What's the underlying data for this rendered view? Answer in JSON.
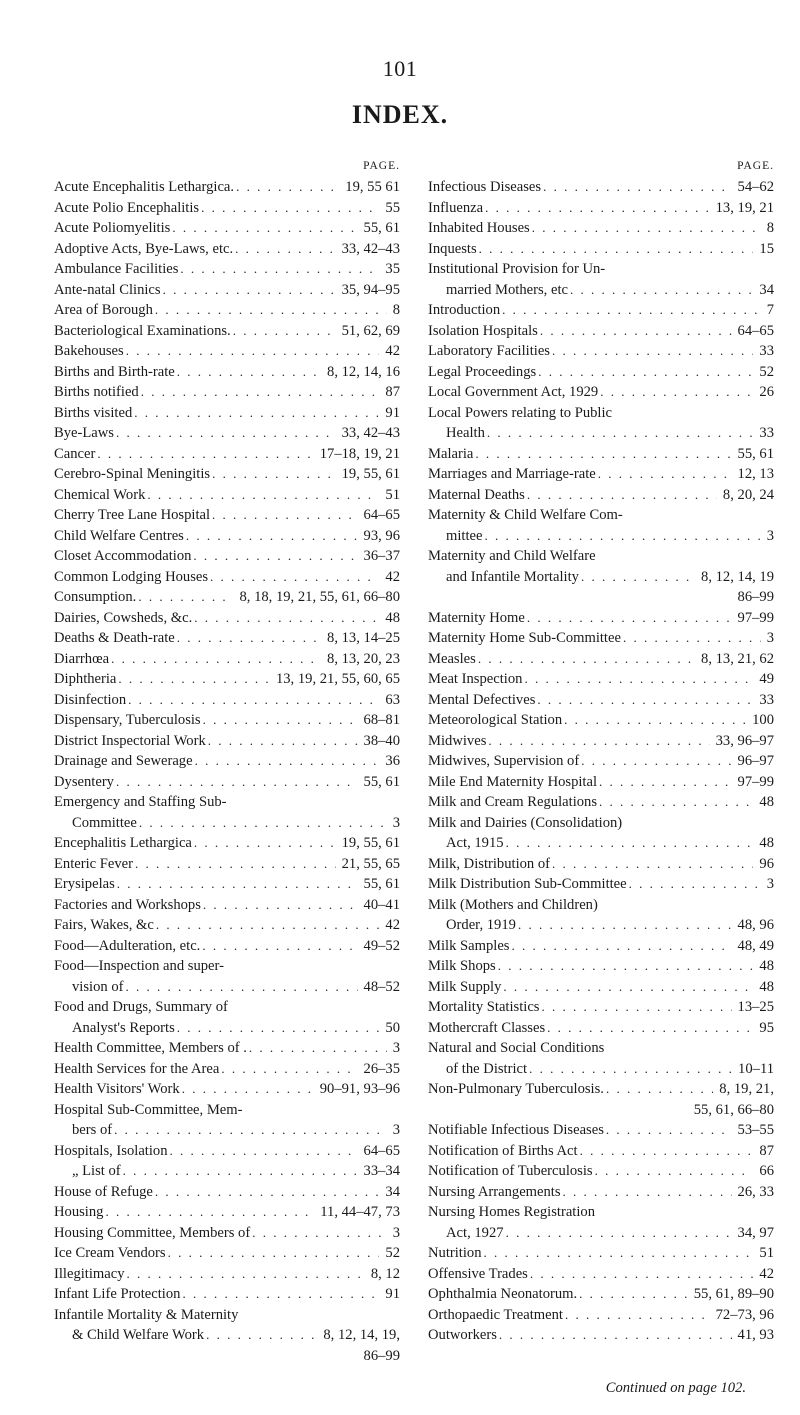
{
  "page_number": "101",
  "title": "INDEX.",
  "col_head": "PAGE.",
  "continued_text": "Continued on page 102.",
  "left": [
    {
      "l": "Acute Encephalitis Lethargica.",
      "p": "19, 55  61"
    },
    {
      "l": "Acute Polio Encephalitis",
      "p": "55"
    },
    {
      "l": "Acute Poliomyelitis",
      "p": "55,  61"
    },
    {
      "l": "Adoptive Acts, Bye-Laws, etc.",
      "p": "33, 42–43"
    },
    {
      "l": "Ambulance Facilities",
      "p": "35"
    },
    {
      "l": "Ante-natal Clinics",
      "p": "35,  94–95"
    },
    {
      "l": "Area of Borough",
      "p": "8"
    },
    {
      "l": "Bacteriological Examinations.",
      "p": "51, 62, 69"
    },
    {
      "l": "Bakehouses",
      "p": "42"
    },
    {
      "l": "Births and Birth-rate",
      "p": "8, 12, 14, 16"
    },
    {
      "l": "Births notified",
      "p": "87"
    },
    {
      "l": "Births visited",
      "p": "91"
    },
    {
      "l": "Bye-Laws",
      "p": "33, 42–43"
    },
    {
      "l": "Cancer",
      "p": "17–18, 19, 21"
    },
    {
      "l": "Cerebro-Spinal Meningitis",
      "p": "19, 55, 61"
    },
    {
      "l": "Chemical Work",
      "p": "51"
    },
    {
      "l": "Cherry Tree Lane Hospital",
      "p": "64–65"
    },
    {
      "l": "Child Welfare Centres",
      "p": "93, 96"
    },
    {
      "l": "Closet Accommodation",
      "p": "36–37"
    },
    {
      "l": "Common Lodging Houses",
      "p": "42"
    },
    {
      "l": "Consumption.",
      "p": "8, 18, 19, 21, 55, 61, 66–80"
    },
    {
      "l": "Dairies, Cowsheds, &c.",
      "p": "48"
    },
    {
      "l": "Deaths & Death-rate",
      "p": "8, 13, 14–25"
    },
    {
      "l": "Diarrhœa",
      "p": "8, 13, 20, 23"
    },
    {
      "l": "Diphtheria",
      "p": "13, 19, 21, 55, 60, 65"
    },
    {
      "l": "Disinfection",
      "p": "63"
    },
    {
      "l": "Dispensary, Tuberculosis",
      "p": "68–81"
    },
    {
      "l": "District Inspectorial Work",
      "p": "38–40"
    },
    {
      "l": "Drainage and Sewerage",
      "p": "36"
    },
    {
      "l": "Dysentery",
      "p": "55,  61"
    },
    {
      "l": "Emergency and Staffing Sub-",
      "p": "",
      "noleader": true
    },
    {
      "l": "Committee",
      "p": "3",
      "indent": 1
    },
    {
      "l": "Encephalitis Lethargica",
      "p": "19, 55, 61"
    },
    {
      "l": "Enteric Fever",
      "p": "21, 55, 65"
    },
    {
      "l": "Erysipelas",
      "p": "55, 61"
    },
    {
      "l": "Factories and Workshops",
      "p": "40–41"
    },
    {
      "l": "Fairs, Wakes, &c",
      "p": "42"
    },
    {
      "l": "Food—Adulteration, etc.",
      "p": "49–52"
    },
    {
      "l": "Food—Inspection   and   super-",
      "p": "",
      "noleader": true
    },
    {
      "l": "vision of",
      "p": "48–52",
      "indent": 1
    },
    {
      "l": "Food  and  Drugs,  Summary  of",
      "p": "",
      "noleader": true
    },
    {
      "l": "Analyst's Reports",
      "p": "50",
      "indent": 1
    },
    {
      "l": "Health Committee, Members of .",
      "p": "3"
    },
    {
      "l": "Health Services for the Area",
      "p": "26–35"
    },
    {
      "l": "Health Visitors' Work",
      "p": "90–91, 93–96"
    },
    {
      "l": "Hospital Sub-Committee,  Mem-",
      "p": "",
      "noleader": true
    },
    {
      "l": "bers of",
      "p": "3",
      "indent": 1
    },
    {
      "l": "Hospitals, Isolation",
      "p": "64–65"
    },
    {
      "l": "„          List of",
      "p": "33–34",
      "indent": 1
    },
    {
      "l": "House of Refuge",
      "p": "34"
    },
    {
      "l": "Housing",
      "p": "11, 44–47, 73"
    },
    {
      "l": "Housing Committee, Members of",
      "p": "3"
    },
    {
      "l": "Ice Cream Vendors",
      "p": "52"
    },
    {
      "l": "Illegitimacy",
      "p": "8, 12"
    },
    {
      "l": "Infant Life Protection",
      "p": "91"
    },
    {
      "l": "Infantile Mortality & Maternity",
      "p": "",
      "noleader": true
    },
    {
      "l": "& Child Welfare Work",
      "p": "8, 12, 14, 19,",
      "indent": 1
    },
    {
      "l": "",
      "p": "86–99",
      "indent": 2,
      "noleader": true
    }
  ],
  "right": [
    {
      "l": "Infectious Diseases",
      "p": "54–62"
    },
    {
      "l": "Influenza",
      "p": "13, 19, 21"
    },
    {
      "l": "Inhabited Houses",
      "p": "8"
    },
    {
      "l": "Inquests",
      "p": "15"
    },
    {
      "l": "Institutional  Provision  for  Un-",
      "p": "",
      "noleader": true
    },
    {
      "l": "married Mothers, etc",
      "p": "34",
      "indent": 1
    },
    {
      "l": "Introduction",
      "p": "7"
    },
    {
      "l": "Isolation Hospitals",
      "p": "64–65"
    },
    {
      "l": "Laboratory Facilities",
      "p": "33"
    },
    {
      "l": "Legal Proceedings",
      "p": "52"
    },
    {
      "l": "Local Government Act, 1929",
      "p": "26"
    },
    {
      "l": "Local Powers relating to Public",
      "p": "",
      "noleader": true
    },
    {
      "l": "Health",
      "p": "33",
      "indent": 1
    },
    {
      "l": "Malaria",
      "p": "55, 61"
    },
    {
      "l": "Marriages and Marriage-rate",
      "p": "12, 13"
    },
    {
      "l": "Maternal Deaths",
      "p": "8, 20, 24"
    },
    {
      "l": "Maternity & Child Welfare Com-",
      "p": "",
      "noleader": true
    },
    {
      "l": "mittee",
      "p": "3",
      "indent": 1
    },
    {
      "l": "Maternity   and   Child   Welfare",
      "p": "",
      "noleader": true
    },
    {
      "l": "and Infantile Mortality",
      "p": "8, 12, 14, 19",
      "indent": 1
    },
    {
      "l": "",
      "p": "86–99",
      "indent": 2,
      "noleader": true
    },
    {
      "l": "Maternity Home",
      "p": "97–99"
    },
    {
      "l": "Maternity Home Sub-Committee",
      "p": "3"
    },
    {
      "l": "Measles",
      "p": "8, 13, 21, 62"
    },
    {
      "l": "Meat Inspection",
      "p": "49"
    },
    {
      "l": "Mental Defectives",
      "p": "33"
    },
    {
      "l": "Meteorological Station",
      "p": "100"
    },
    {
      "l": "Midwives",
      "p": "33, 96–97"
    },
    {
      "l": "Midwives, Supervision of",
      "p": "96–97"
    },
    {
      "l": "Mile End Maternity Hospital",
      "p": "97–99"
    },
    {
      "l": "Milk and Cream Regulations",
      "p": "48"
    },
    {
      "l": "Milk and Dairies (Consolidation)",
      "p": "",
      "noleader": true
    },
    {
      "l": "Act, 1915",
      "p": "48",
      "indent": 1
    },
    {
      "l": "Milk, Distribution of",
      "p": "96"
    },
    {
      "l": "Milk Distribution Sub-Committee",
      "p": "3"
    },
    {
      "l": "Milk  (Mothers  and  Children)",
      "p": "",
      "noleader": true
    },
    {
      "l": "Order, 1919",
      "p": "48, 96",
      "indent": 1
    },
    {
      "l": "Milk Samples",
      "p": "48, 49"
    },
    {
      "l": "Milk Shops",
      "p": "48"
    },
    {
      "l": "Milk Supply",
      "p": "48"
    },
    {
      "l": "Mortality Statistics",
      "p": "13–25"
    },
    {
      "l": "Mothercraft Classes",
      "p": "95"
    },
    {
      "l": "Natural  and  Social  Conditions",
      "p": "",
      "noleader": true
    },
    {
      "l": "of the District",
      "p": "10–11",
      "indent": 1
    },
    {
      "l": "Non-Pulmonary Tuberculosis.",
      "p": "8, 19, 21,"
    },
    {
      "l": "",
      "p": "55, 61, 66–80",
      "indent": 2,
      "noleader": true
    },
    {
      "l": "Notifiable Infectious Diseases",
      "p": "53–55"
    },
    {
      "l": "Notification of Births Act",
      "p": "87"
    },
    {
      "l": "Notification of Tuberculosis",
      "p": "66"
    },
    {
      "l": "Nursing Arrangements",
      "p": "26, 33"
    },
    {
      "l": "Nursing    Homes    Registration",
      "p": "",
      "noleader": true
    },
    {
      "l": "Act, 1927",
      "p": "34, 97",
      "indent": 1
    },
    {
      "l": "Nutrition",
      "p": "51"
    },
    {
      "l": "Offensive Trades",
      "p": "42"
    },
    {
      "l": "Ophthalmia Neonatorum.",
      "p": "55, 61, 89–90"
    },
    {
      "l": "Orthopaedic Treatment",
      "p": "72–73, 96"
    },
    {
      "l": "Outworkers",
      "p": "41, 93"
    }
  ]
}
